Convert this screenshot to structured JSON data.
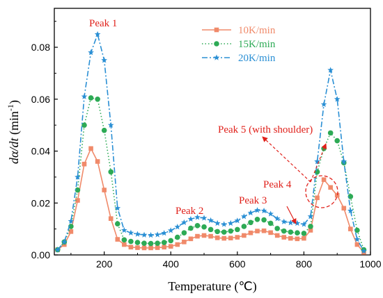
{
  "chart_data": {
    "type": "line",
    "title": "",
    "xlabel": "Temperature (℃)",
    "ylabel_parts": {
      "italic": "dα/dt",
      "rest": " (min",
      "sup": "-1",
      "end": ")"
    },
    "xlim": [
      50,
      1000
    ],
    "ylim": [
      0,
      0.095
    ],
    "xticks": [
      200,
      400,
      600,
      800,
      1000
    ],
    "yticks": [
      0.0,
      0.02,
      0.04,
      0.06,
      0.08
    ],
    "ytick_labels": [
      "0.00",
      "0.02",
      "0.04",
      "0.06",
      "0.08"
    ],
    "grid": false,
    "legend_position": "top-right",
    "series": [
      {
        "name": "10K/min",
        "color": "#f08a6a",
        "dash": "solid",
        "marker": "square",
        "x": [
          60,
          80,
          100,
          120,
          140,
          160,
          180,
          200,
          220,
          240,
          260,
          280,
          300,
          320,
          340,
          360,
          380,
          400,
          420,
          440,
          460,
          480,
          500,
          520,
          540,
          560,
          580,
          600,
          620,
          640,
          660,
          680,
          700,
          720,
          740,
          760,
          780,
          800,
          820,
          840,
          860,
          880,
          900,
          920,
          940,
          960,
          980
        ],
        "y": [
          0.002,
          0.004,
          0.009,
          0.021,
          0.035,
          0.041,
          0.036,
          0.025,
          0.014,
          0.006,
          0.004,
          0.003,
          0.0028,
          0.0027,
          0.0027,
          0.0028,
          0.003,
          0.0033,
          0.004,
          0.005,
          0.0062,
          0.0072,
          0.0075,
          0.0072,
          0.0066,
          0.0064,
          0.0065,
          0.0068,
          0.0075,
          0.0085,
          0.0092,
          0.0093,
          0.0086,
          0.0075,
          0.0068,
          0.0064,
          0.0062,
          0.0064,
          0.0095,
          0.022,
          0.029,
          0.026,
          0.023,
          0.018,
          0.01,
          0.004,
          0.001
        ]
      },
      {
        "name": "15K/min",
        "color": "#2daa55",
        "dash": "dotted",
        "marker": "circle",
        "x": [
          60,
          80,
          100,
          120,
          140,
          160,
          180,
          200,
          220,
          240,
          260,
          280,
          300,
          320,
          340,
          360,
          380,
          400,
          420,
          440,
          460,
          480,
          500,
          520,
          540,
          560,
          580,
          600,
          620,
          640,
          660,
          680,
          700,
          720,
          740,
          760,
          780,
          800,
          820,
          840,
          860,
          880,
          900,
          920,
          940,
          960,
          980
        ],
        "y": [
          0.002,
          0.005,
          0.011,
          0.025,
          0.05,
          0.0605,
          0.06,
          0.048,
          0.032,
          0.012,
          0.0058,
          0.0052,
          0.0048,
          0.0045,
          0.0044,
          0.0045,
          0.0048,
          0.0055,
          0.0068,
          0.0085,
          0.0103,
          0.0113,
          0.0108,
          0.0098,
          0.009,
          0.0088,
          0.0092,
          0.0098,
          0.011,
          0.0125,
          0.0137,
          0.0135,
          0.0122,
          0.0102,
          0.0092,
          0.0088,
          0.0085,
          0.0083,
          0.011,
          0.032,
          0.041,
          0.047,
          0.044,
          0.0355,
          0.0225,
          0.0095,
          0.002
        ]
      },
      {
        "name": "20K/min",
        "color": "#2a8fd4",
        "dash": "dashdot",
        "marker": "star",
        "x": [
          60,
          80,
          100,
          120,
          140,
          160,
          180,
          200,
          220,
          240,
          260,
          280,
          300,
          320,
          340,
          360,
          380,
          400,
          420,
          440,
          460,
          480,
          500,
          520,
          540,
          560,
          580,
          600,
          620,
          640,
          660,
          680,
          700,
          720,
          740,
          760,
          780,
          800,
          820,
          840,
          860,
          880,
          900,
          920,
          940,
          960,
          980
        ],
        "y": [
          0.002,
          0.005,
          0.013,
          0.03,
          0.061,
          0.078,
          0.085,
          0.075,
          0.05,
          0.018,
          0.0095,
          0.0085,
          0.008,
          0.0077,
          0.0076,
          0.0078,
          0.0084,
          0.0094,
          0.0108,
          0.0125,
          0.0138,
          0.0145,
          0.0142,
          0.0133,
          0.0122,
          0.0118,
          0.0122,
          0.0132,
          0.0148,
          0.0162,
          0.0172,
          0.017,
          0.0158,
          0.014,
          0.0128,
          0.0124,
          0.0122,
          0.0118,
          0.0148,
          0.036,
          0.058,
          0.0712,
          0.06,
          0.036,
          0.017,
          0.006,
          0.0015
        ]
      }
    ],
    "annotations": {
      "peak1": "Peak 1",
      "peak2": "Peak 2",
      "peak3": "Peak 3",
      "peak4": "Peak 4",
      "peak5": "Peak 5 (with shoulder)"
    },
    "annotation_color": "#e0201a"
  }
}
